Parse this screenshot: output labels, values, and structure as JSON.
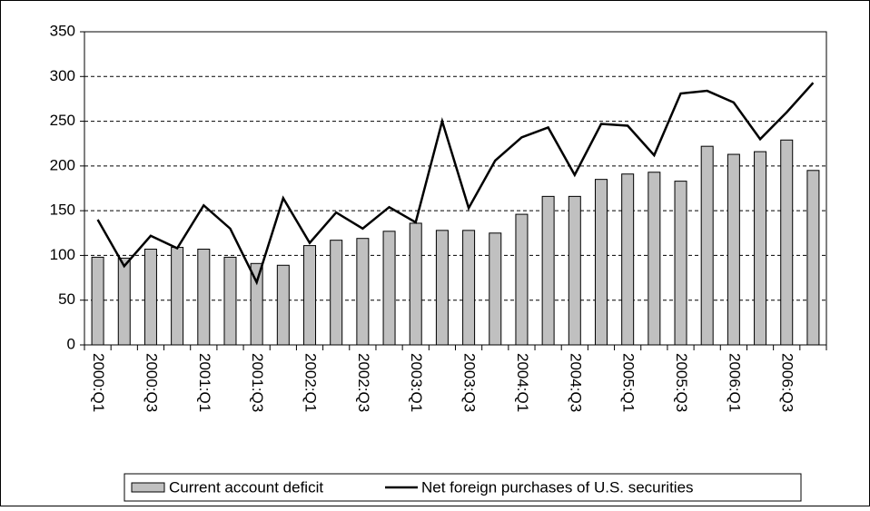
{
  "chart_data": {
    "type": "bar_line",
    "categories": [
      "2000:Q1",
      null,
      "2000:Q3",
      null,
      "2001:Q1",
      null,
      "2001:Q3",
      null,
      "2002:Q1",
      null,
      "2002:Q3",
      null,
      "2003:Q1",
      null,
      "2003:Q3",
      null,
      "2004:Q1",
      null,
      "2004:Q3",
      null,
      "2005:Q1",
      null,
      "2005:Q3",
      null,
      "2006:Q1",
      null,
      "2006:Q3",
      null
    ],
    "series": [
      {
        "name": "Current account deficit",
        "type": "bar",
        "color": "#c0c0c0",
        "values": [
          98,
          97,
          107,
          109,
          107,
          98,
          91,
          89,
          111,
          117,
          119,
          127,
          136,
          128,
          128,
          125,
          146,
          166,
          166,
          185,
          191,
          193,
          183,
          222,
          213,
          216,
          229,
          195
        ]
      },
      {
        "name": "Net foreign purchases of U.S. securities",
        "type": "line",
        "color": "#000000",
        "values": [
          140,
          88,
          122,
          108,
          156,
          130,
          70,
          164,
          114,
          148,
          130,
          154,
          137,
          250,
          153,
          206,
          232,
          243,
          190,
          247,
          245,
          212,
          281,
          284,
          271,
          230,
          260,
          293
        ]
      }
    ],
    "ylim": [
      0,
      350
    ],
    "yticks": [
      0,
      50,
      100,
      150,
      200,
      250,
      300,
      350
    ],
    "grid": true,
    "legend": "bottom"
  }
}
